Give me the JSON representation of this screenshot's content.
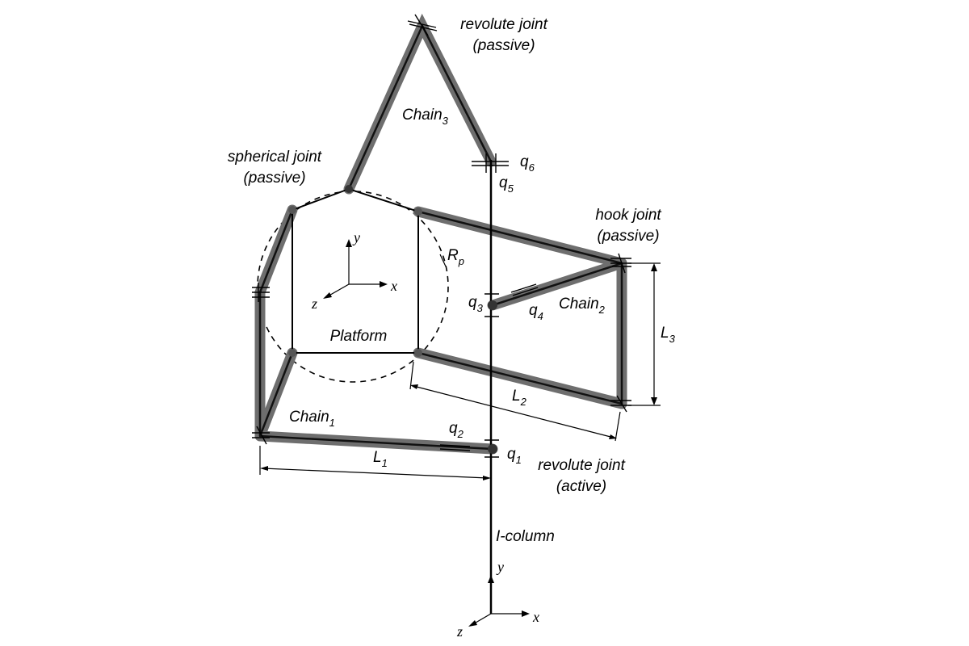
{
  "labels": {
    "top_joint_line1": "revolute joint",
    "top_joint_line2": "(passive)",
    "spherical_line1": "spherical joint",
    "spherical_line2": "(passive)",
    "hook_line1": "hook joint",
    "hook_line2": "(passive)",
    "active_line1": "revolute joint",
    "active_line2": "(active)",
    "platform": "Platform",
    "column": "I-column"
  },
  "chains": {
    "chain1": {
      "base": "Chain",
      "sub": "1"
    },
    "chain2": {
      "base": "Chain",
      "sub": "2"
    },
    "chain3": {
      "base": "Chain",
      "sub": "3"
    }
  },
  "joints": {
    "q1": {
      "base": "q",
      "sub": "1"
    },
    "q2": {
      "base": "q",
      "sub": "2"
    },
    "q3": {
      "base": "q",
      "sub": "3"
    },
    "q4": {
      "base": "q",
      "sub": "4"
    },
    "q5": {
      "base": "q",
      "sub": "5"
    },
    "q6": {
      "base": "q",
      "sub": "6"
    }
  },
  "dimensions": {
    "L1": {
      "base": "L",
      "sub": "1"
    },
    "L2": {
      "base": "L",
      "sub": "2"
    },
    "L3": {
      "base": "L",
      "sub": "3"
    },
    "Rp": {
      "base": "R",
      "sub": "p"
    }
  },
  "axes": {
    "platform": {
      "x": "x",
      "y": "y",
      "z": "z"
    },
    "base": {
      "x": "x",
      "y": "y",
      "z": "z"
    }
  }
}
